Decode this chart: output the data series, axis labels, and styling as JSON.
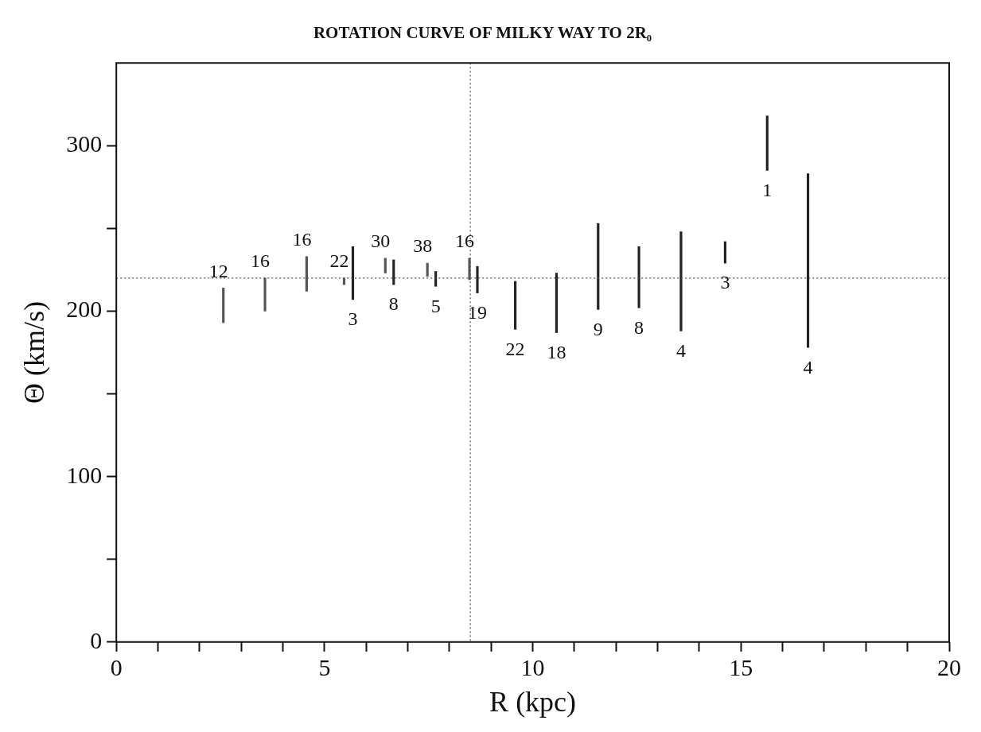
{
  "chart_data": {
    "type": "bar",
    "title": "ROTATION CURVE OF MILKY WAY TO 2R₀",
    "xlabel": "R (kpc)",
    "ylabel": "Θ (km/s)",
    "xlim": [
      0,
      20
    ],
    "xticks": [
      0,
      {
        "value": 1,
        "label": null
      },
      {
        "value": 2,
        "label": null
      },
      {
        "value": 3,
        "label": null
      },
      {
        "value": 4,
        "label": null
      },
      5,
      {
        "value": 6,
        "label": null
      },
      {
        "value": 7,
        "label": null
      },
      {
        "value": 8,
        "label": null
      },
      {
        "value": 9,
        "label": null
      },
      10,
      {
        "value": 11,
        "label": null
      },
      {
        "value": 12,
        "label": null
      },
      {
        "value": 13,
        "label": null
      },
      {
        "value": 14,
        "label": null
      },
      15,
      {
        "value": 16,
        "label": null
      },
      {
        "value": 17,
        "label": null
      },
      {
        "value": 18,
        "label": null
      },
      {
        "value": 19,
        "label": null
      },
      20
    ],
    "ylim": [
      0,
      350
    ],
    "yticks": [
      0,
      {
        "value": 50,
        "label": null
      },
      100,
      {
        "value": 150,
        "label": null
      },
      200,
      {
        "value": 250,
        "label": null
      },
      300
    ],
    "grid": false,
    "legend": false,
    "series": [
      {
        "color": "#555555",
        "x": [
          2.57,
          3.57,
          4.57,
          5.47,
          6.46,
          7.47,
          8.48
        ],
        "base": [
          193,
          200,
          212,
          216,
          223,
          221,
          219
        ],
        "values": [
          21,
          20,
          21,
          4,
          9,
          8,
          13
        ]
      },
      {
        "color": "#222222",
        "x": [
          5.68,
          6.66,
          7.67,
          8.67,
          9.58,
          10.57,
          11.57,
          12.55,
          13.56,
          14.62,
          15.63,
          16.61
        ],
        "base": [
          207,
          216,
          215,
          211,
          189,
          187,
          201,
          202,
          188,
          229,
          285,
          178
        ],
        "values": [
          32,
          15,
          9,
          16,
          29,
          36,
          52,
          37,
          60,
          13,
          33,
          105
        ]
      }
    ],
    "ref_lines": [
      {
        "axis": "y",
        "value": 220,
        "line_style": "dotted",
        "color": "#555555"
      },
      {
        "axis": "x",
        "value": 8.5,
        "line_style": "dotted",
        "color": "#555555"
      }
    ],
    "annotations": [
      {
        "text": "12",
        "x": 2.57,
        "y": 214
      },
      {
        "text": "16",
        "x": 3.57,
        "y": 220
      },
      {
        "text": "16",
        "x": 4.57,
        "y": 233
      },
      {
        "text": "22",
        "x": 5.47,
        "y": 220
      },
      {
        "text": "30",
        "x": 6.46,
        "y": 232
      },
      {
        "text": "38",
        "x": 7.47,
        "y": 229
      },
      {
        "text": "16",
        "x": 8.48,
        "y": 232
      },
      {
        "text": "3",
        "x": 5.68,
        "y": 207
      },
      {
        "text": "8",
        "x": 6.66,
        "y": 216
      },
      {
        "text": "5",
        "x": 7.67,
        "y": 215
      },
      {
        "text": "19",
        "x": 8.67,
        "y": 211
      },
      {
        "text": "22",
        "x": 9.58,
        "y": 189
      },
      {
        "text": "18",
        "x": 10.57,
        "y": 187
      },
      {
        "text": "9",
        "x": 11.57,
        "y": 201
      },
      {
        "text": "8",
        "x": 12.55,
        "y": 202
      },
      {
        "text": "4",
        "x": 13.56,
        "y": 188
      },
      {
        "text": "3",
        "x": 14.62,
        "y": 229
      },
      {
        "text": "1",
        "x": 15.63,
        "y": 285
      },
      {
        "text": "4",
        "x": 16.61,
        "y": 178
      }
    ]
  }
}
